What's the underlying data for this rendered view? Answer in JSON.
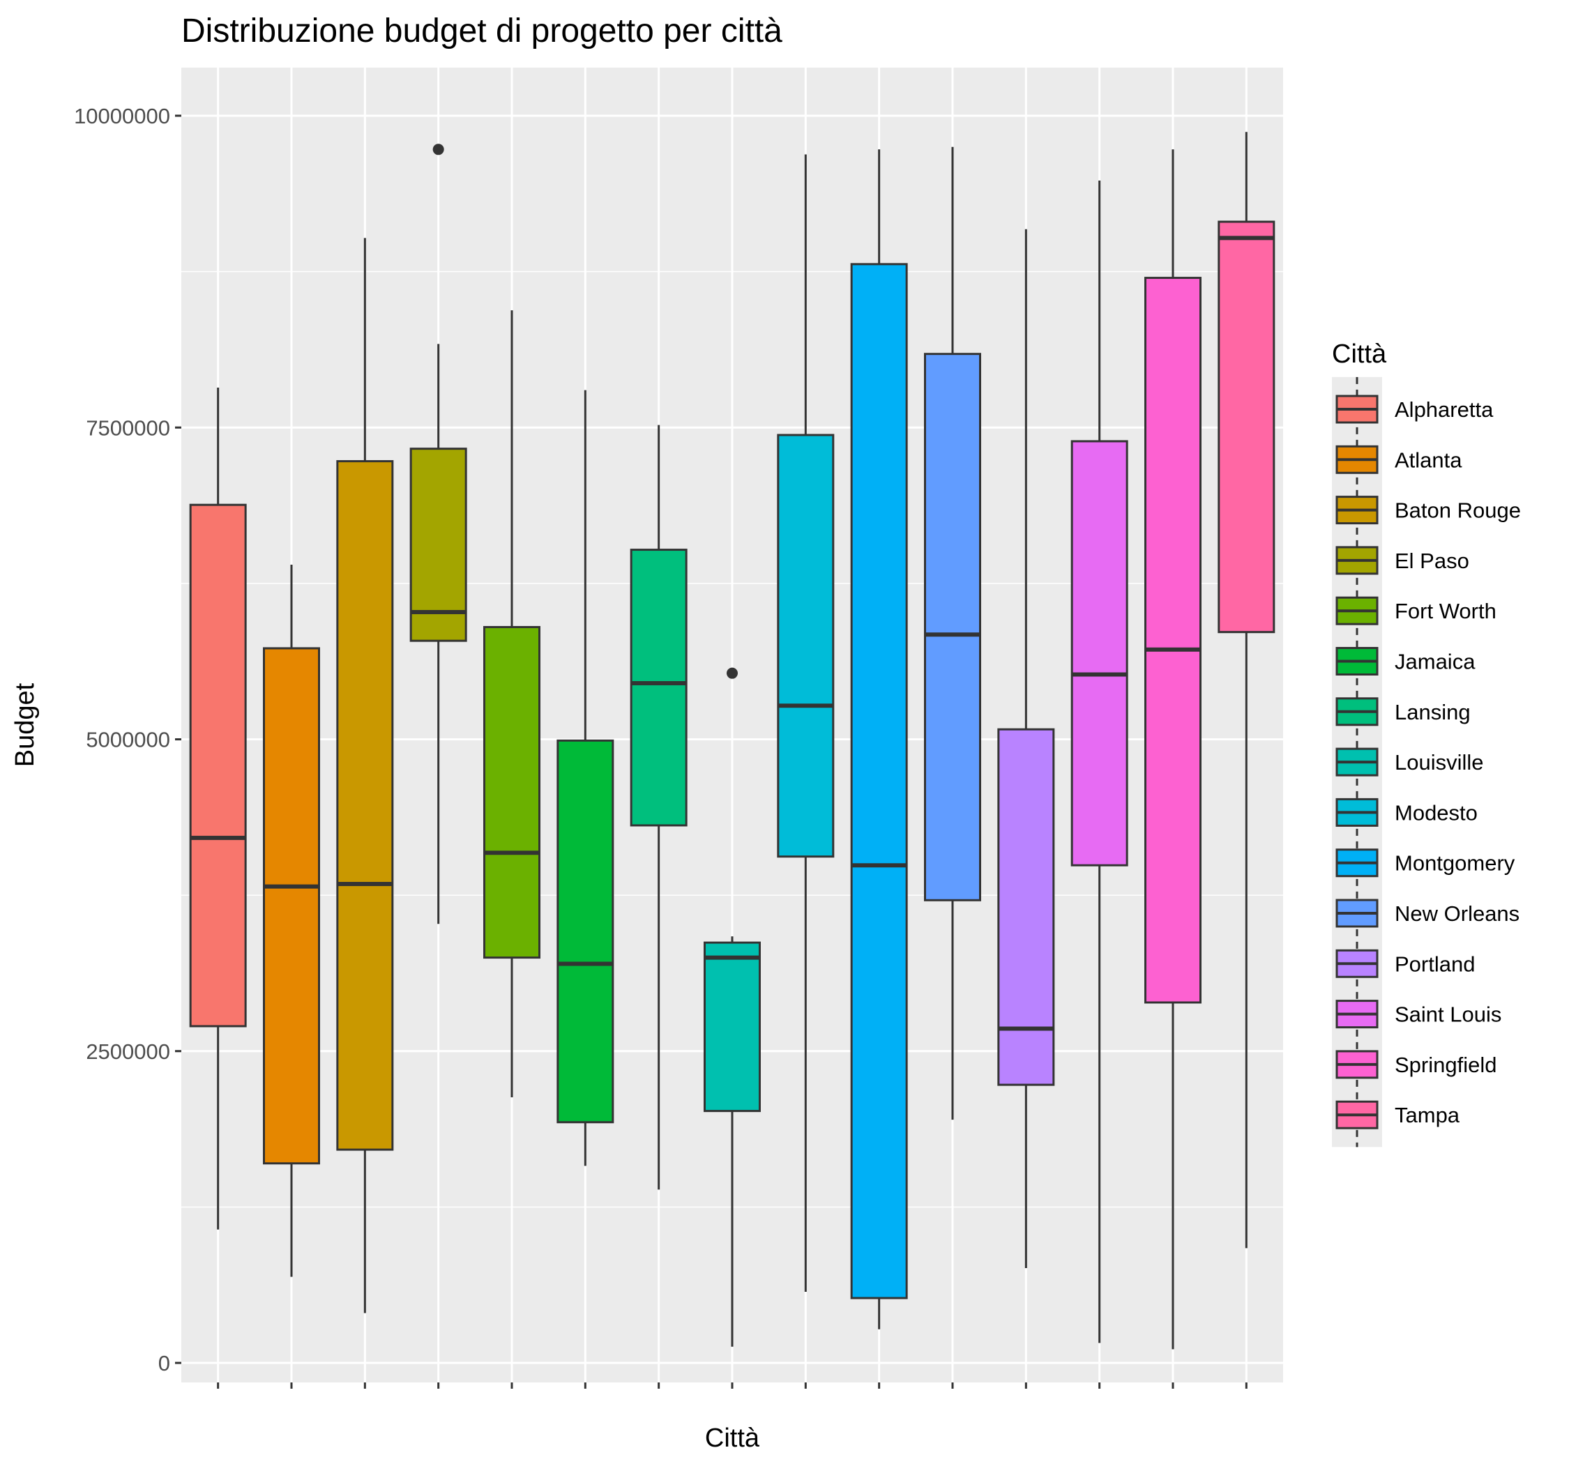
{
  "chart_data": {
    "type": "boxplot",
    "title": "Distribuzione budget di progetto per città",
    "xlabel": "Città",
    "ylabel": "Budget",
    "ylim": [
      -380000,
      10400000
    ],
    "yticks": [
      0,
      2500000,
      5000000,
      7500000,
      10000000
    ],
    "ytick_labels": [
      "0",
      "2500000",
      "5000000",
      "7500000",
      "10000000"
    ],
    "x_tick_labels_shown": false,
    "grid": true,
    "legend": {
      "title": "Città",
      "placement": "right"
    },
    "series": [
      {
        "name": "Alpharetta",
        "color": "#F8766D",
        "min": 1070000,
        "q1": 2700000,
        "median": 4210000,
        "q3": 6880000,
        "max": 7820000,
        "outliers": []
      },
      {
        "name": "Atlanta",
        "color": "#E58700",
        "min": 690000,
        "q1": 1600000,
        "median": 3820000,
        "q3": 5730000,
        "max": 6400000,
        "outliers": []
      },
      {
        "name": "Baton Rouge",
        "color": "#C99800",
        "min": 400000,
        "q1": 1710000,
        "median": 3840000,
        "q3": 7230000,
        "max": 9020000,
        "outliers": []
      },
      {
        "name": "El Paso",
        "color": "#A3A500",
        "min": 3520000,
        "q1": 5790000,
        "median": 6020000,
        "q3": 7330000,
        "max": 8170000,
        "outliers": [
          9730000
        ]
      },
      {
        "name": "Fort Worth",
        "color": "#6BB100",
        "min": 2130000,
        "q1": 3250000,
        "median": 4090000,
        "q3": 5900000,
        "max": 8440000,
        "outliers": []
      },
      {
        "name": "Jamaica",
        "color": "#00BA38",
        "min": 1580000,
        "q1": 1930000,
        "median": 3200000,
        "q3": 4990000,
        "max": 7800000,
        "outliers": []
      },
      {
        "name": "Lansing",
        "color": "#00BF7D",
        "min": 1390000,
        "q1": 4310000,
        "median": 5450000,
        "q3": 6520000,
        "max": 7520000,
        "outliers": []
      },
      {
        "name": "Louisville",
        "color": "#00C0AF",
        "min": 130000,
        "q1": 2020000,
        "median": 3250000,
        "q3": 3370000,
        "max": 3420000,
        "outliers": [
          5530000
        ]
      },
      {
        "name": "Modesto",
        "color": "#00BCD8",
        "min": 570000,
        "q1": 4060000,
        "median": 5270000,
        "q3": 7440000,
        "max": 9690000,
        "outliers": []
      },
      {
        "name": "Montgomery",
        "color": "#00B0F6",
        "min": 270000,
        "q1": 520000,
        "median": 3990000,
        "q3": 8810000,
        "max": 9730000,
        "outliers": []
      },
      {
        "name": "New Orleans",
        "color": "#619CFF",
        "min": 1950000,
        "q1": 3710000,
        "median": 5840000,
        "q3": 8090000,
        "max": 9750000,
        "outliers": []
      },
      {
        "name": "Portland",
        "color": "#B983FF",
        "min": 760000,
        "q1": 2230000,
        "median": 2680000,
        "q3": 5080000,
        "max": 9090000,
        "outliers": []
      },
      {
        "name": "Saint Louis",
        "color": "#E76BF3",
        "min": 160000,
        "q1": 3990000,
        "median": 5520000,
        "q3": 7390000,
        "max": 9480000,
        "outliers": []
      },
      {
        "name": "Springfield",
        "color": "#FD61D1",
        "min": 110000,
        "q1": 2890000,
        "median": 5720000,
        "q3": 8700000,
        "max": 9730000,
        "outliers": []
      },
      {
        "name": "Tampa",
        "color": "#FF67A4",
        "min": 920000,
        "q1": 5860000,
        "median": 9020000,
        "q3": 9150000,
        "max": 9870000,
        "outliers": []
      }
    ]
  }
}
